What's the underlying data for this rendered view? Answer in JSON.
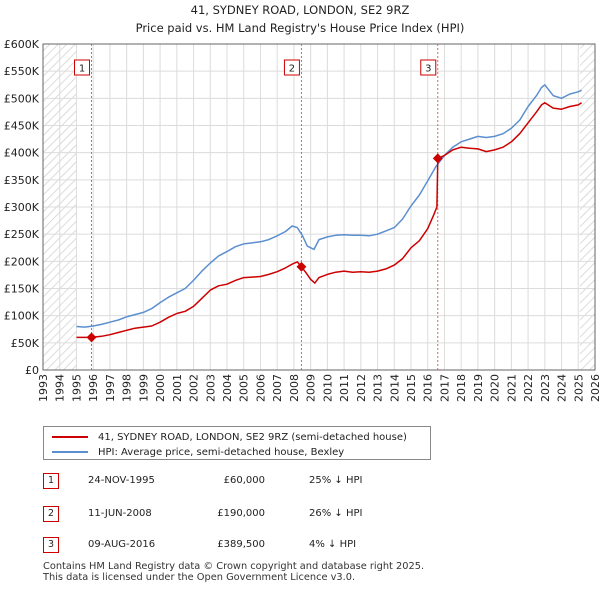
{
  "chart_data": {
    "type": "line",
    "title": "41, SYDNEY ROAD, LONDON, SE2 9RZ",
    "subtitle": "Price paid vs. HM Land Registry's House Price Index (HPI)",
    "xlim": [
      1993,
      2026
    ],
    "ylim": [
      0,
      600000
    ],
    "x_ticks": [
      "1993",
      "1994",
      "1995",
      "1996",
      "1997",
      "1998",
      "1999",
      "2000",
      "2001",
      "2002",
      "2003",
      "2004",
      "2005",
      "2006",
      "2007",
      "2008",
      "2009",
      "2010",
      "2011",
      "2012",
      "2013",
      "2014",
      "2015",
      "2016",
      "2017",
      "2018",
      "2019",
      "2020",
      "2021",
      "2022",
      "2023",
      "2024",
      "2025",
      "2026"
    ],
    "y_ticks": [
      {
        "value": 0,
        "label": "£0"
      },
      {
        "value": 50000,
        "label": "£50K"
      },
      {
        "value": 100000,
        "label": "£100K"
      },
      {
        "value": 150000,
        "label": "£150K"
      },
      {
        "value": 200000,
        "label": "£200K"
      },
      {
        "value": 250000,
        "label": "£250K"
      },
      {
        "value": 300000,
        "label": "£300K"
      },
      {
        "value": 350000,
        "label": "£350K"
      },
      {
        "value": 400000,
        "label": "£400K"
      },
      {
        "value": 450000,
        "label": "£450K"
      },
      {
        "value": 500000,
        "label": "£500K"
      },
      {
        "value": 550000,
        "label": "£550K"
      },
      {
        "value": 600000,
        "label": "£600K"
      }
    ],
    "grid": true,
    "hatched_regions": [
      [
        1993,
        1995.0
      ],
      [
        2025.1,
        2026
      ]
    ],
    "series": [
      {
        "name": "41, SYDNEY ROAD, LONDON, SE2 9RZ (semi-detached house)",
        "color": "#cc0000",
        "x": [
          1995.0,
          1995.9,
          1996.5,
          1997.0,
          1997.5,
          1998.0,
          1998.5,
          1999.0,
          1999.5,
          2000.0,
          2000.5,
          2001.0,
          2001.5,
          2002.0,
          2002.5,
          2003.0,
          2003.5,
          2004.0,
          2004.5,
          2005.0,
          2005.5,
          2006.0,
          2006.5,
          2007.0,
          2007.5,
          2007.9,
          2008.2,
          2008.45,
          2008.7,
          2009.0,
          2009.25,
          2009.5,
          2010.0,
          2010.5,
          2011.0,
          2011.5,
          2012.0,
          2012.5,
          2013.0,
          2013.5,
          2014.0,
          2014.5,
          2015.0,
          2015.5,
          2016.0,
          2016.35,
          2016.55,
          2016.6,
          2017.0,
          2017.5,
          2018.0,
          2018.5,
          2019.0,
          2019.5,
          2020.0,
          2020.5,
          2021.0,
          2021.5,
          2022.0,
          2022.5,
          2022.8,
          2023.0,
          2023.5,
          2024.0,
          2024.5,
          2025.0,
          2025.2
        ],
        "y": [
          60000,
          60000,
          62000,
          65000,
          69000,
          73000,
          77000,
          79000,
          81000,
          88000,
          97000,
          104000,
          108000,
          117000,
          132000,
          147000,
          155000,
          158000,
          165000,
          170000,
          171000,
          172000,
          176000,
          181000,
          188000,
          195000,
          199000,
          190000,
          180000,
          167000,
          160000,
          170000,
          176000,
          180000,
          182000,
          180000,
          181000,
          180000,
          182000,
          186000,
          193000,
          205000,
          225000,
          238000,
          260000,
          285000,
          300000,
          389500,
          395000,
          405000,
          410000,
          408000,
          407000,
          402000,
          405000,
          410000,
          420000,
          435000,
          455000,
          475000,
          488000,
          492000,
          482000,
          480000,
          485000,
          488000,
          492000
        ]
      },
      {
        "name": "HPI: Average price, semi-detached house, Bexley",
        "color": "#5b8fd0",
        "x": [
          1995.0,
          1995.5,
          1996.0,
          1996.5,
          1997.0,
          1997.5,
          1998.0,
          1998.5,
          1999.0,
          1999.5,
          2000.0,
          2000.5,
          2001.0,
          2001.5,
          2002.0,
          2002.5,
          2003.0,
          2003.5,
          2004.0,
          2004.5,
          2005.0,
          2005.5,
          2006.0,
          2006.5,
          2007.0,
          2007.5,
          2007.9,
          2008.2,
          2008.5,
          2008.8,
          2009.2,
          2009.5,
          2010.0,
          2010.5,
          2011.0,
          2011.5,
          2012.0,
          2012.5,
          2013.0,
          2013.5,
          2014.0,
          2014.5,
          2015.0,
          2015.5,
          2016.0,
          2016.5,
          2017.0,
          2017.5,
          2018.0,
          2018.5,
          2019.0,
          2019.5,
          2020.0,
          2020.5,
          2021.0,
          2021.5,
          2022.0,
          2022.5,
          2022.8,
          2023.0,
          2023.5,
          2024.0,
          2024.5,
          2025.0,
          2025.2
        ],
        "y": [
          80000,
          79000,
          81000,
          84000,
          88000,
          92000,
          98000,
          102000,
          106000,
          113000,
          124000,
          134000,
          142000,
          150000,
          165000,
          182000,
          197000,
          210000,
          218000,
          227000,
          232000,
          234000,
          236000,
          240000,
          247000,
          255000,
          265000,
          262000,
          248000,
          228000,
          222000,
          240000,
          245000,
          248000,
          249000,
          248000,
          248000,
          247000,
          250000,
          256000,
          262000,
          278000,
          302000,
          322000,
          348000,
          375000,
          395000,
          410000,
          420000,
          425000,
          430000,
          428000,
          430000,
          435000,
          445000,
          460000,
          485000,
          505000,
          520000,
          525000,
          505000,
          500000,
          508000,
          512000,
          515000
        ]
      }
    ],
    "annotations": [
      {
        "label": "1",
        "x": 1995.9,
        "y": 60000
      },
      {
        "label": "2",
        "x": 2008.45,
        "y": 190000
      },
      {
        "label": "3",
        "x": 2016.6,
        "y": 389500
      }
    ]
  },
  "legend": {
    "items": [
      {
        "label": "41, SYDNEY ROAD, LONDON, SE2 9RZ (semi-detached house)",
        "color": "#cc0000"
      },
      {
        "label": "HPI: Average price, semi-detached house, Bexley",
        "color": "#5b8fd0"
      }
    ]
  },
  "sales": [
    {
      "num": "1",
      "date": "24-NOV-1995",
      "price": "£60,000",
      "hpi": "25% ↓ HPI"
    },
    {
      "num": "2",
      "date": "11-JUN-2008",
      "price": "£190,000",
      "hpi": "26% ↓ HPI"
    },
    {
      "num": "3",
      "date": "09-AUG-2016",
      "price": "£389,500",
      "hpi": "4% ↓ HPI"
    }
  ],
  "footer": {
    "line1": "Contains HM Land Registry data © Crown copyright and database right 2025.",
    "line2": "This data is licensed under the Open Government Licence v3.0."
  }
}
